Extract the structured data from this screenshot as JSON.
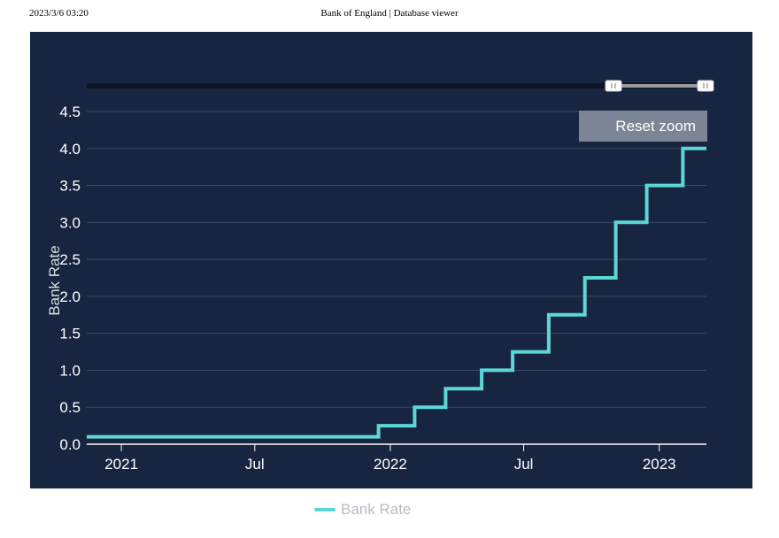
{
  "header": {
    "timestamp": "2023/3/6 03:20",
    "title": "Bank of England | Database viewer"
  },
  "toolbar": {
    "reset_zoom_label": "Reset zoom"
  },
  "colors": {
    "panel_bg": "#182540",
    "series": "#5cd6d6",
    "grid": "#3b4a66",
    "axis_text": "#ffffff",
    "reset_button": "#7c8595",
    "navigator_track": "#0d1426",
    "navigator_selected": "#9a9a9a"
  },
  "navigator": {
    "range_start": "2022-12-01",
    "range_end": "2023-03-06"
  },
  "chart_data": {
    "type": "line",
    "step": true,
    "title": "",
    "xlabel": "",
    "ylabel": "Bank Rate",
    "ylim": [
      0,
      4.5
    ],
    "yticks": [
      "0.0",
      "0.5",
      "1.0",
      "1.5",
      "2.0",
      "2.5",
      "3.0",
      "3.5",
      "4.0",
      "4.5"
    ],
    "xticks": [
      {
        "label": "2021",
        "date": "2021-01-01"
      },
      {
        "label": "Jul",
        "date": "2021-07-01"
      },
      {
        "label": "2022",
        "date": "2022-01-01"
      },
      {
        "label": "Jul",
        "date": "2022-07-01"
      },
      {
        "label": "2023",
        "date": "2023-01-01"
      }
    ],
    "xrange": [
      "2020-11-15",
      "2023-03-06"
    ],
    "grid": true,
    "legend_position": "bottom-center",
    "series": [
      {
        "name": "Bank Rate",
        "points": [
          {
            "date": "2020-11-15",
            "value": 0.1
          },
          {
            "date": "2021-12-16",
            "value": 0.25
          },
          {
            "date": "2022-02-03",
            "value": 0.5
          },
          {
            "date": "2022-03-17",
            "value": 0.75
          },
          {
            "date": "2022-05-05",
            "value": 1.0
          },
          {
            "date": "2022-06-16",
            "value": 1.25
          },
          {
            "date": "2022-08-04",
            "value": 1.75
          },
          {
            "date": "2022-09-22",
            "value": 2.25
          },
          {
            "date": "2022-11-03",
            "value": 3.0
          },
          {
            "date": "2022-12-15",
            "value": 3.5
          },
          {
            "date": "2023-02-02",
            "value": 4.0
          },
          {
            "date": "2023-03-06",
            "value": 4.0
          }
        ]
      }
    ]
  }
}
